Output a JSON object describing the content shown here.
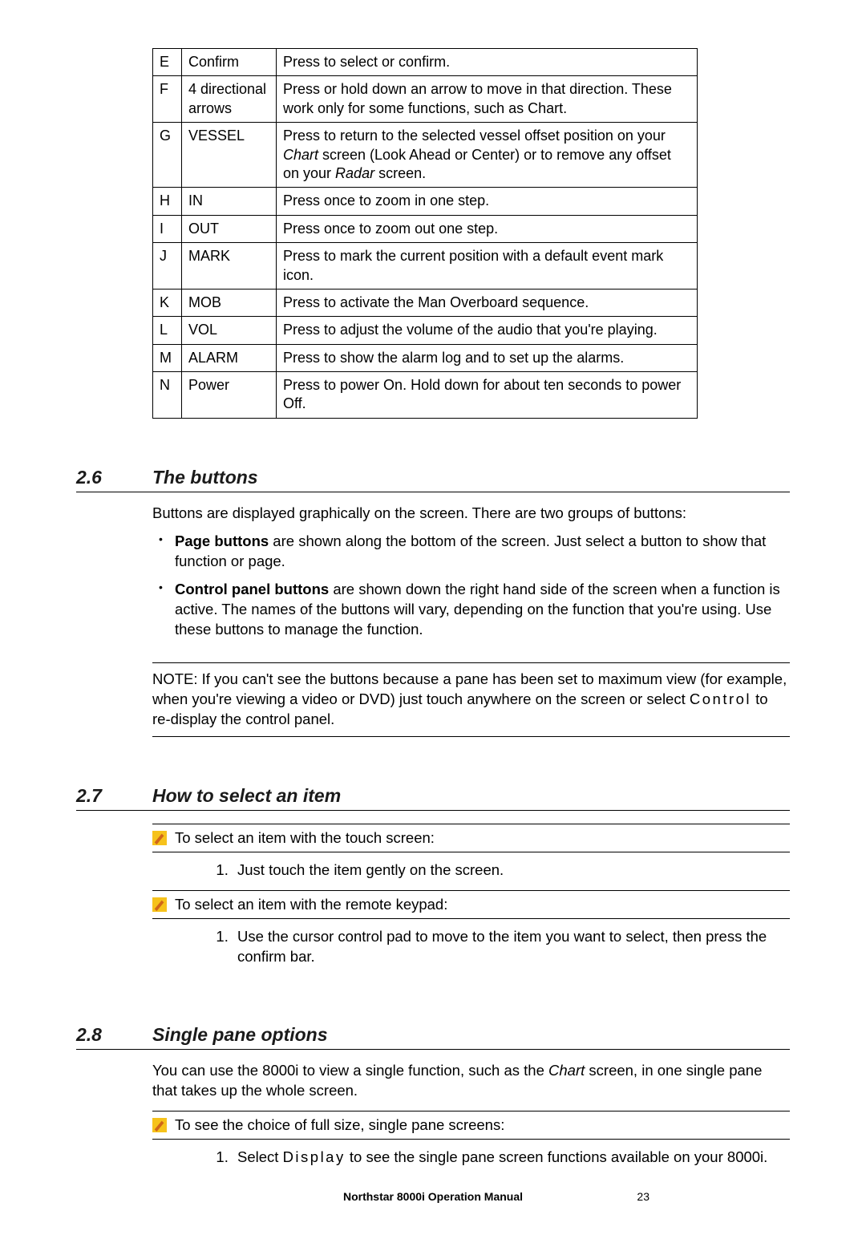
{
  "keyTable": {
    "rows": [
      {
        "id": "E",
        "name": "Confirm",
        "desc": "Press to select or confirm."
      },
      {
        "id": "F",
        "name": "4 directional arrows",
        "desc": "Press or hold down an arrow to move in that direction. These work only for some functions, such as Chart."
      },
      {
        "id": "G",
        "name": "VESSEL",
        "desc_pre": "Press to return to the selected vessel offset position on your ",
        "desc_it1": "Chart",
        "desc_mid": " screen (Look Ahead or Center) or to remove any offset on your ",
        "desc_it2": "Radar",
        "desc_post": " screen."
      },
      {
        "id": "H",
        "name": "IN",
        "desc": "Press once to zoom in one step."
      },
      {
        "id": "I",
        "name": "OUT",
        "desc": "Press once to zoom out one step."
      },
      {
        "id": "J",
        "name": "MARK",
        "desc": "Press to mark the current position with a default event mark icon."
      },
      {
        "id": "K",
        "name": "MOB",
        "desc": "Press to activate the Man Overboard sequence."
      },
      {
        "id": "L",
        "name": "VOL",
        "desc": "Press to adjust the volume of the audio that you're playing."
      },
      {
        "id": "M",
        "name": "ALARM",
        "desc": "Press to show the alarm log and to set up the alarms."
      },
      {
        "id": "N",
        "name": "Power",
        "desc": "Press to power On. Hold down for about ten seconds to power Off."
      }
    ]
  },
  "sec26": {
    "num": "2.6",
    "title": "The buttons",
    "intro": "Buttons are displayed graphically on the screen. There are two groups of buttons:",
    "b1_bold": "Page buttons",
    "b1_rest": " are shown along the bottom of the screen. Just select a button to show that function or page.",
    "b2_bold": "Control panel buttons",
    "b2_rest": " are shown down the right hand side of the screen when a function is active. The names of the buttons will vary, depending on the function that you're using. Use these buttons to manage the function.",
    "note_pre": "NOTE: If you can't see the buttons because a pane has been set to maximum view (for example, when you're viewing a video or DVD) just touch anywhere on the screen or select ",
    "note_ctrl": "Control",
    "note_post": " to re-display the control panel."
  },
  "sec27": {
    "num": "2.7",
    "title": "How to select an item",
    "p1": "To select an item with the touch screen:",
    "s1": "Just touch the item gently on the screen.",
    "p2": "To select an item with the remote keypad:",
    "s2": "Use the cursor control pad to move to the item you want to select, then press the confirm bar."
  },
  "sec28": {
    "num": "2.8",
    "title": "Single pane options",
    "intro_pre": "You can use the 8000i to view a single function, such as the ",
    "intro_it": "Chart",
    "intro_post": " screen, in one single pane that takes up the whole screen.",
    "p1": "To see the choice of full size, single pane screens:",
    "s1_pre": "Select ",
    "s1_ctrl": "Display",
    "s1_post": " to see the single pane screen functions available on your 8000i."
  },
  "footer": {
    "title": "Northstar 8000i Operation Manual",
    "page": "23"
  },
  "colors": {
    "pencil_bg": "#f6c21b",
    "pencil_fg": "#d0661a"
  }
}
